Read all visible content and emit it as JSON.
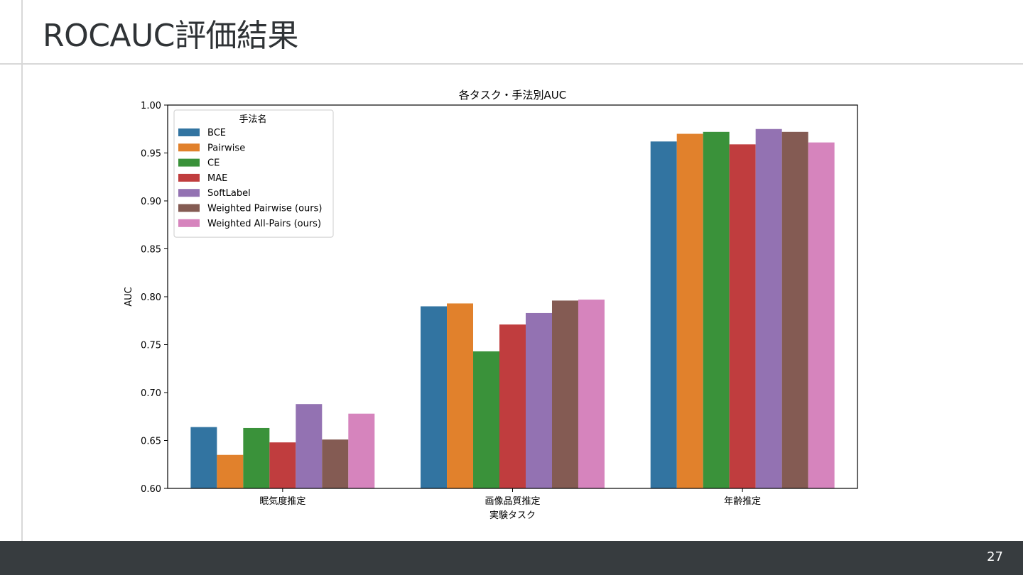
{
  "slide": {
    "title": "ROCAUC評価結果",
    "page_number": "27"
  },
  "chart_data": {
    "type": "bar",
    "title": "各タスク・手法別AUC",
    "xlabel": "実験タスク",
    "ylabel": "AUC",
    "ylim": [
      0.6,
      1.0
    ],
    "yticks": [
      "0.60",
      "0.65",
      "0.70",
      "0.75",
      "0.80",
      "0.85",
      "0.90",
      "0.95",
      "1.00"
    ],
    "grid": false,
    "legend_title": "手法名",
    "legend_position": "top-left",
    "categories": [
      "眠気度推定",
      "画像品質推定",
      "年齢推定"
    ],
    "series": [
      {
        "name": "BCE",
        "color": "#3274a1",
        "values": [
          0.664,
          0.79,
          0.962
        ]
      },
      {
        "name": "Pairwise",
        "color": "#e1812c",
        "values": [
          0.635,
          0.793,
          0.97
        ]
      },
      {
        "name": "CE",
        "color": "#3a923a",
        "values": [
          0.663,
          0.743,
          0.972
        ]
      },
      {
        "name": "MAE",
        "color": "#c03d3e",
        "values": [
          0.648,
          0.771,
          0.959
        ]
      },
      {
        "name": "SoftLabel",
        "color": "#9372b2",
        "values": [
          0.688,
          0.783,
          0.975
        ]
      },
      {
        "name": "Weighted Pairwise (ours)",
        "color": "#845b53",
        "values": [
          0.651,
          0.796,
          0.972
        ]
      },
      {
        "name": "Weighted All-Pairs (ours)",
        "color": "#d684bd",
        "values": [
          0.678,
          0.797,
          0.961
        ]
      }
    ]
  }
}
